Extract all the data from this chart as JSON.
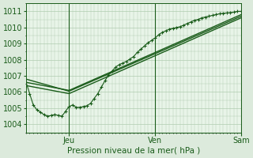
{
  "title": "",
  "xlabel": "Pression niveau de la mer( hPa )",
  "ylabel": "",
  "bg_color": "#dceadc",
  "plot_bg_color": "#e8f4e8",
  "grid_color": "#b0ccb0",
  "line_color": "#1a5c1a",
  "ylim": [
    1003.5,
    1011.5
  ],
  "yticks": [
    1004,
    1005,
    1006,
    1007,
    1008,
    1009,
    1010,
    1011
  ],
  "day_labels": [
    "Jeu",
    "Ven",
    "Sam"
  ],
  "day_positions": [
    48,
    144,
    240
  ],
  "smooth_lines": [
    {
      "x": [
        0,
        48,
        240
      ],
      "y": [
        1006.6,
        1006.1,
        1010.8
      ]
    },
    {
      "x": [
        0,
        48,
        240
      ],
      "y": [
        1006.4,
        1005.9,
        1010.6
      ]
    },
    {
      "x": [
        0,
        48,
        240
      ],
      "y": [
        1006.8,
        1006.05,
        1010.7
      ]
    }
  ],
  "detailed_x": [
    0,
    4,
    8,
    12,
    16,
    20,
    24,
    28,
    32,
    36,
    40,
    44,
    48,
    52,
    56,
    60,
    64,
    68,
    72,
    76,
    80,
    84,
    88,
    92,
    96,
    100,
    104,
    108,
    112,
    116,
    120,
    124,
    128,
    132,
    136,
    140,
    144,
    148,
    152,
    156,
    160,
    164,
    168,
    172,
    176,
    180,
    184,
    188,
    192,
    196,
    200,
    204,
    208,
    212,
    216,
    220,
    224,
    228,
    232,
    236,
    240
  ],
  "detailed_y": [
    1006.6,
    1005.9,
    1005.2,
    1004.9,
    1004.75,
    1004.6,
    1004.5,
    1004.55,
    1004.6,
    1004.55,
    1004.5,
    1004.8,
    1005.1,
    1005.2,
    1005.05,
    1005.05,
    1005.1,
    1005.15,
    1005.3,
    1005.6,
    1005.9,
    1006.3,
    1006.7,
    1007.05,
    1007.3,
    1007.55,
    1007.7,
    1007.8,
    1007.9,
    1008.05,
    1008.2,
    1008.45,
    1008.65,
    1008.85,
    1009.05,
    1009.2,
    1009.35,
    1009.55,
    1009.7,
    1009.8,
    1009.9,
    1009.95,
    1010.0,
    1010.05,
    1010.15,
    1010.25,
    1010.35,
    1010.45,
    1010.5,
    1010.6,
    1010.65,
    1010.7,
    1010.75,
    1010.8,
    1010.85,
    1010.88,
    1010.9,
    1010.92,
    1010.95,
    1011.0,
    1011.0
  ]
}
